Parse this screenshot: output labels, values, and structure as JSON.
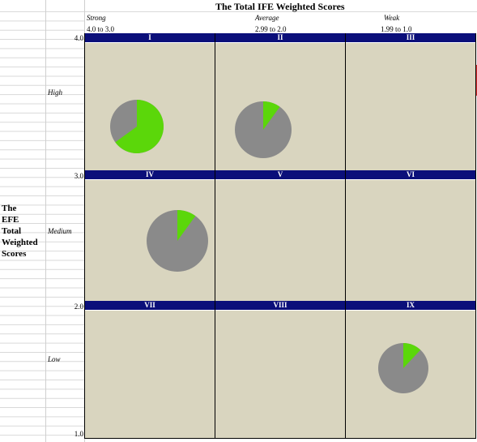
{
  "title": "The Total IFE Weighted Scores",
  "columns": [
    {
      "label": "Strong",
      "range": "4.0 to 3.0"
    },
    {
      "label": "Average",
      "range": "2.99 to 2.0"
    },
    {
      "label": "Weak",
      "range": "1.99 to 1.0"
    }
  ],
  "y_axis": {
    "title_lines": [
      "The",
      "EFE",
      "Total",
      "Weighted",
      "Scores"
    ],
    "levels": [
      "High",
      "Medium",
      "Low"
    ],
    "ticks": [
      "4.0",
      "3.0",
      "2.0",
      "1.0"
    ]
  },
  "cells": [
    {
      "id": "I"
    },
    {
      "id": "II"
    },
    {
      "id": "III"
    },
    {
      "id": "IV"
    },
    {
      "id": "V"
    },
    {
      "id": "VI"
    },
    {
      "id": "VII"
    },
    {
      "id": "VIII"
    },
    {
      "id": "IX"
    }
  ],
  "pies": [
    {
      "cell": "I",
      "green_fraction": 0.65
    },
    {
      "cell": "II",
      "green_fraction": 0.1
    },
    {
      "cell": "IV",
      "green_fraction": 0.1
    },
    {
      "cell": "IX",
      "green_fraction": 0.12
    }
  ],
  "colors": {
    "header_bar": "#0b0f7a",
    "cell_bg": "#d9d5bf",
    "pie_green": "#5bd70a",
    "pie_gray": "#8a8a8a"
  }
}
